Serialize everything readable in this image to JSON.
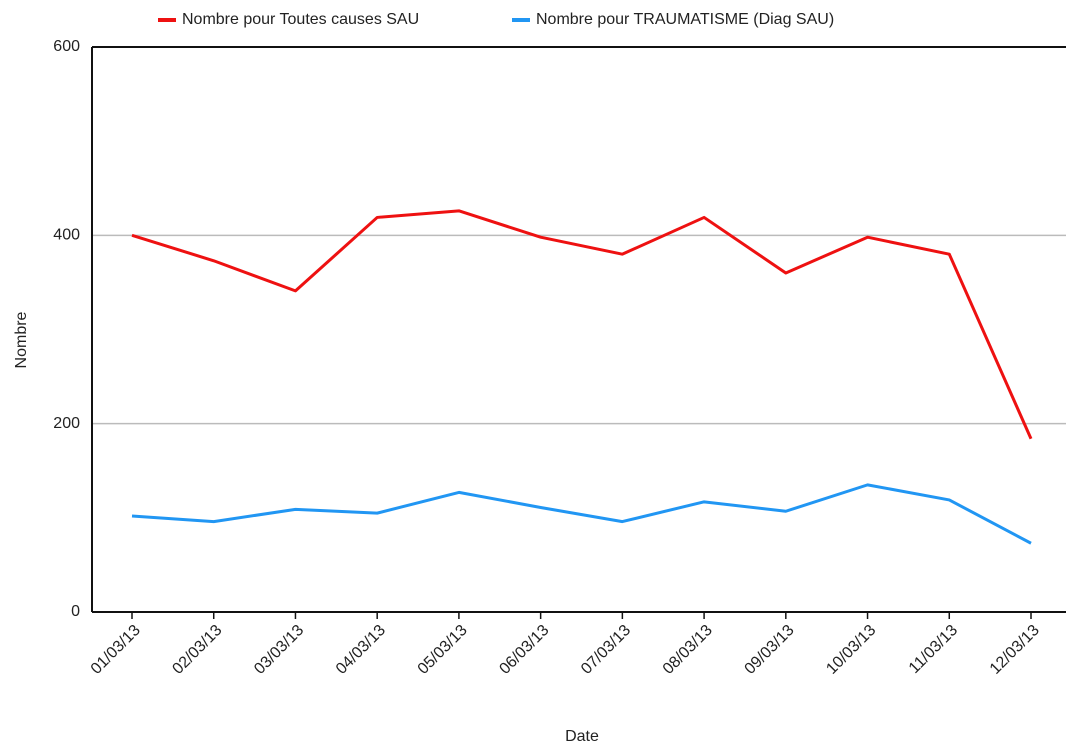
{
  "chart_data": {
    "type": "line",
    "x_label": "Date",
    "y_label": "Nombre",
    "categories": [
      "01/03/13",
      "02/03/13",
      "03/03/13",
      "04/03/13",
      "05/03/13",
      "06/03/13",
      "07/03/13",
      "08/03/13",
      "09/03/13",
      "10/03/13",
      "11/03/13",
      "12/03/13"
    ],
    "series": [
      {
        "name": "Nombre pour Toutes causes SAU",
        "color": "#ee1111",
        "values": [
          400,
          373,
          341,
          419,
          426,
          398,
          380,
          419,
          360,
          398,
          380,
          184
        ]
      },
      {
        "name": "Nombre pour TRAUMATISME (Diag SAU)",
        "color": "#2196f3",
        "values": [
          102,
          96,
          109,
          105,
          127,
          111,
          96,
          117,
          107,
          135,
          119,
          73
        ]
      }
    ],
    "ylim": [
      0,
      600
    ],
    "yticks": [
      0,
      200,
      400,
      600
    ],
    "grid": true,
    "legend": "top"
  }
}
